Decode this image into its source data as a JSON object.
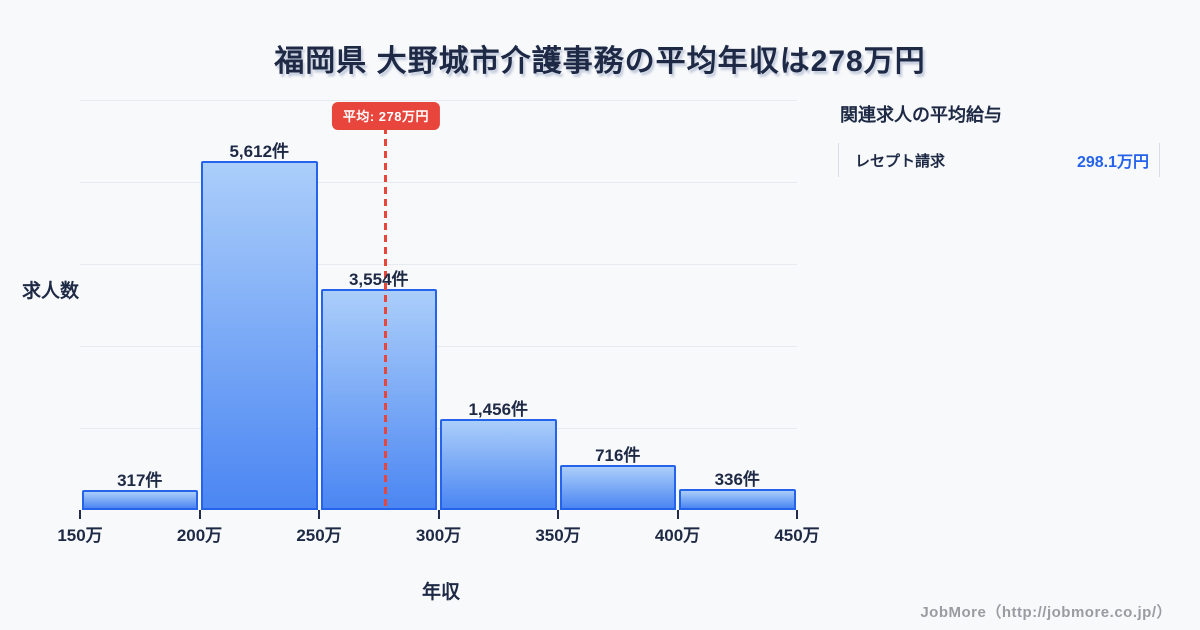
{
  "title": "福岡県 大野城市介護事務の平均年収は278万円",
  "chart_data": {
    "type": "bar",
    "title": "福岡県 大野城市介護事務の平均年収は278万円",
    "xlabel": "年収",
    "ylabel": "求人数",
    "x_tick_labels": [
      "150万",
      "200万",
      "250万",
      "300万",
      "350万",
      "400万",
      "450万"
    ],
    "bin_range_man_yen": [
      150,
      450
    ],
    "values": [
      317,
      5612,
      3554,
      1456,
      716,
      336
    ],
    "value_labels": [
      "317件",
      "5,612件",
      "3,554件",
      "1,456件",
      "716件",
      "336件"
    ],
    "average": {
      "value_man_yen": 278,
      "label": "平均: 278万円"
    },
    "ylim": [
      0,
      6600
    ],
    "grid": true,
    "legend": "none"
  },
  "side_panel": {
    "title": "関連求人の平均給与",
    "rows": [
      {
        "label": "レセプト請求",
        "value": "298.1万円"
      }
    ]
  },
  "footer": {
    "credit": "JobMore（http://jobmore.co.jp/）"
  },
  "colors": {
    "background": "#f8f9fb",
    "bar_fill_top": "#abcefa",
    "bar_fill_bottom": "#4b86f2",
    "bar_border": "#2563eb",
    "grid": "#e7eaf1",
    "text_dark": "#1e2a45",
    "average_red": "#e8453c",
    "value_blue": "#2563eb",
    "footer_gray": "#9b9ba2"
  }
}
